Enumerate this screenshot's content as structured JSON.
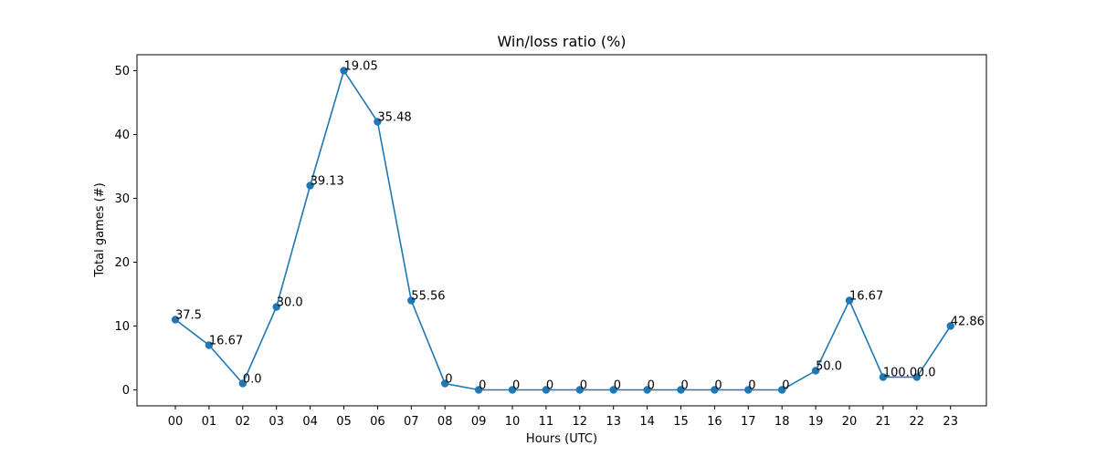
{
  "chart_data": {
    "type": "line",
    "title": "Win/loss ratio (%)",
    "xlabel": "Hours (UTC)",
    "ylabel": "Total games (#)",
    "categories": [
      "00",
      "01",
      "02",
      "03",
      "04",
      "05",
      "06",
      "07",
      "08",
      "09",
      "10",
      "11",
      "12",
      "13",
      "14",
      "15",
      "16",
      "17",
      "18",
      "19",
      "20",
      "21",
      "22",
      "23"
    ],
    "values": [
      11,
      7,
      1,
      13,
      32,
      50,
      42,
      14,
      1,
      0,
      0,
      0,
      0,
      0,
      0,
      0,
      0,
      0,
      0,
      3,
      14,
      2,
      2,
      10
    ],
    "point_labels": [
      "37.5",
      "16.67",
      "0.0",
      "30.0",
      "39.13",
      "19.05",
      "35.48",
      "55.56",
      "0",
      "0",
      "0",
      "0",
      "0",
      "0",
      "0",
      "0",
      "0",
      "0",
      "0",
      "50.0",
      "16.67",
      "100.0",
      "0.0",
      "42.86"
    ],
    "yticks": [
      0,
      10,
      20,
      30,
      40,
      50
    ],
    "ylim": [
      -2.5,
      52.5
    ],
    "grid": false,
    "line_color": "#1f77b4"
  }
}
